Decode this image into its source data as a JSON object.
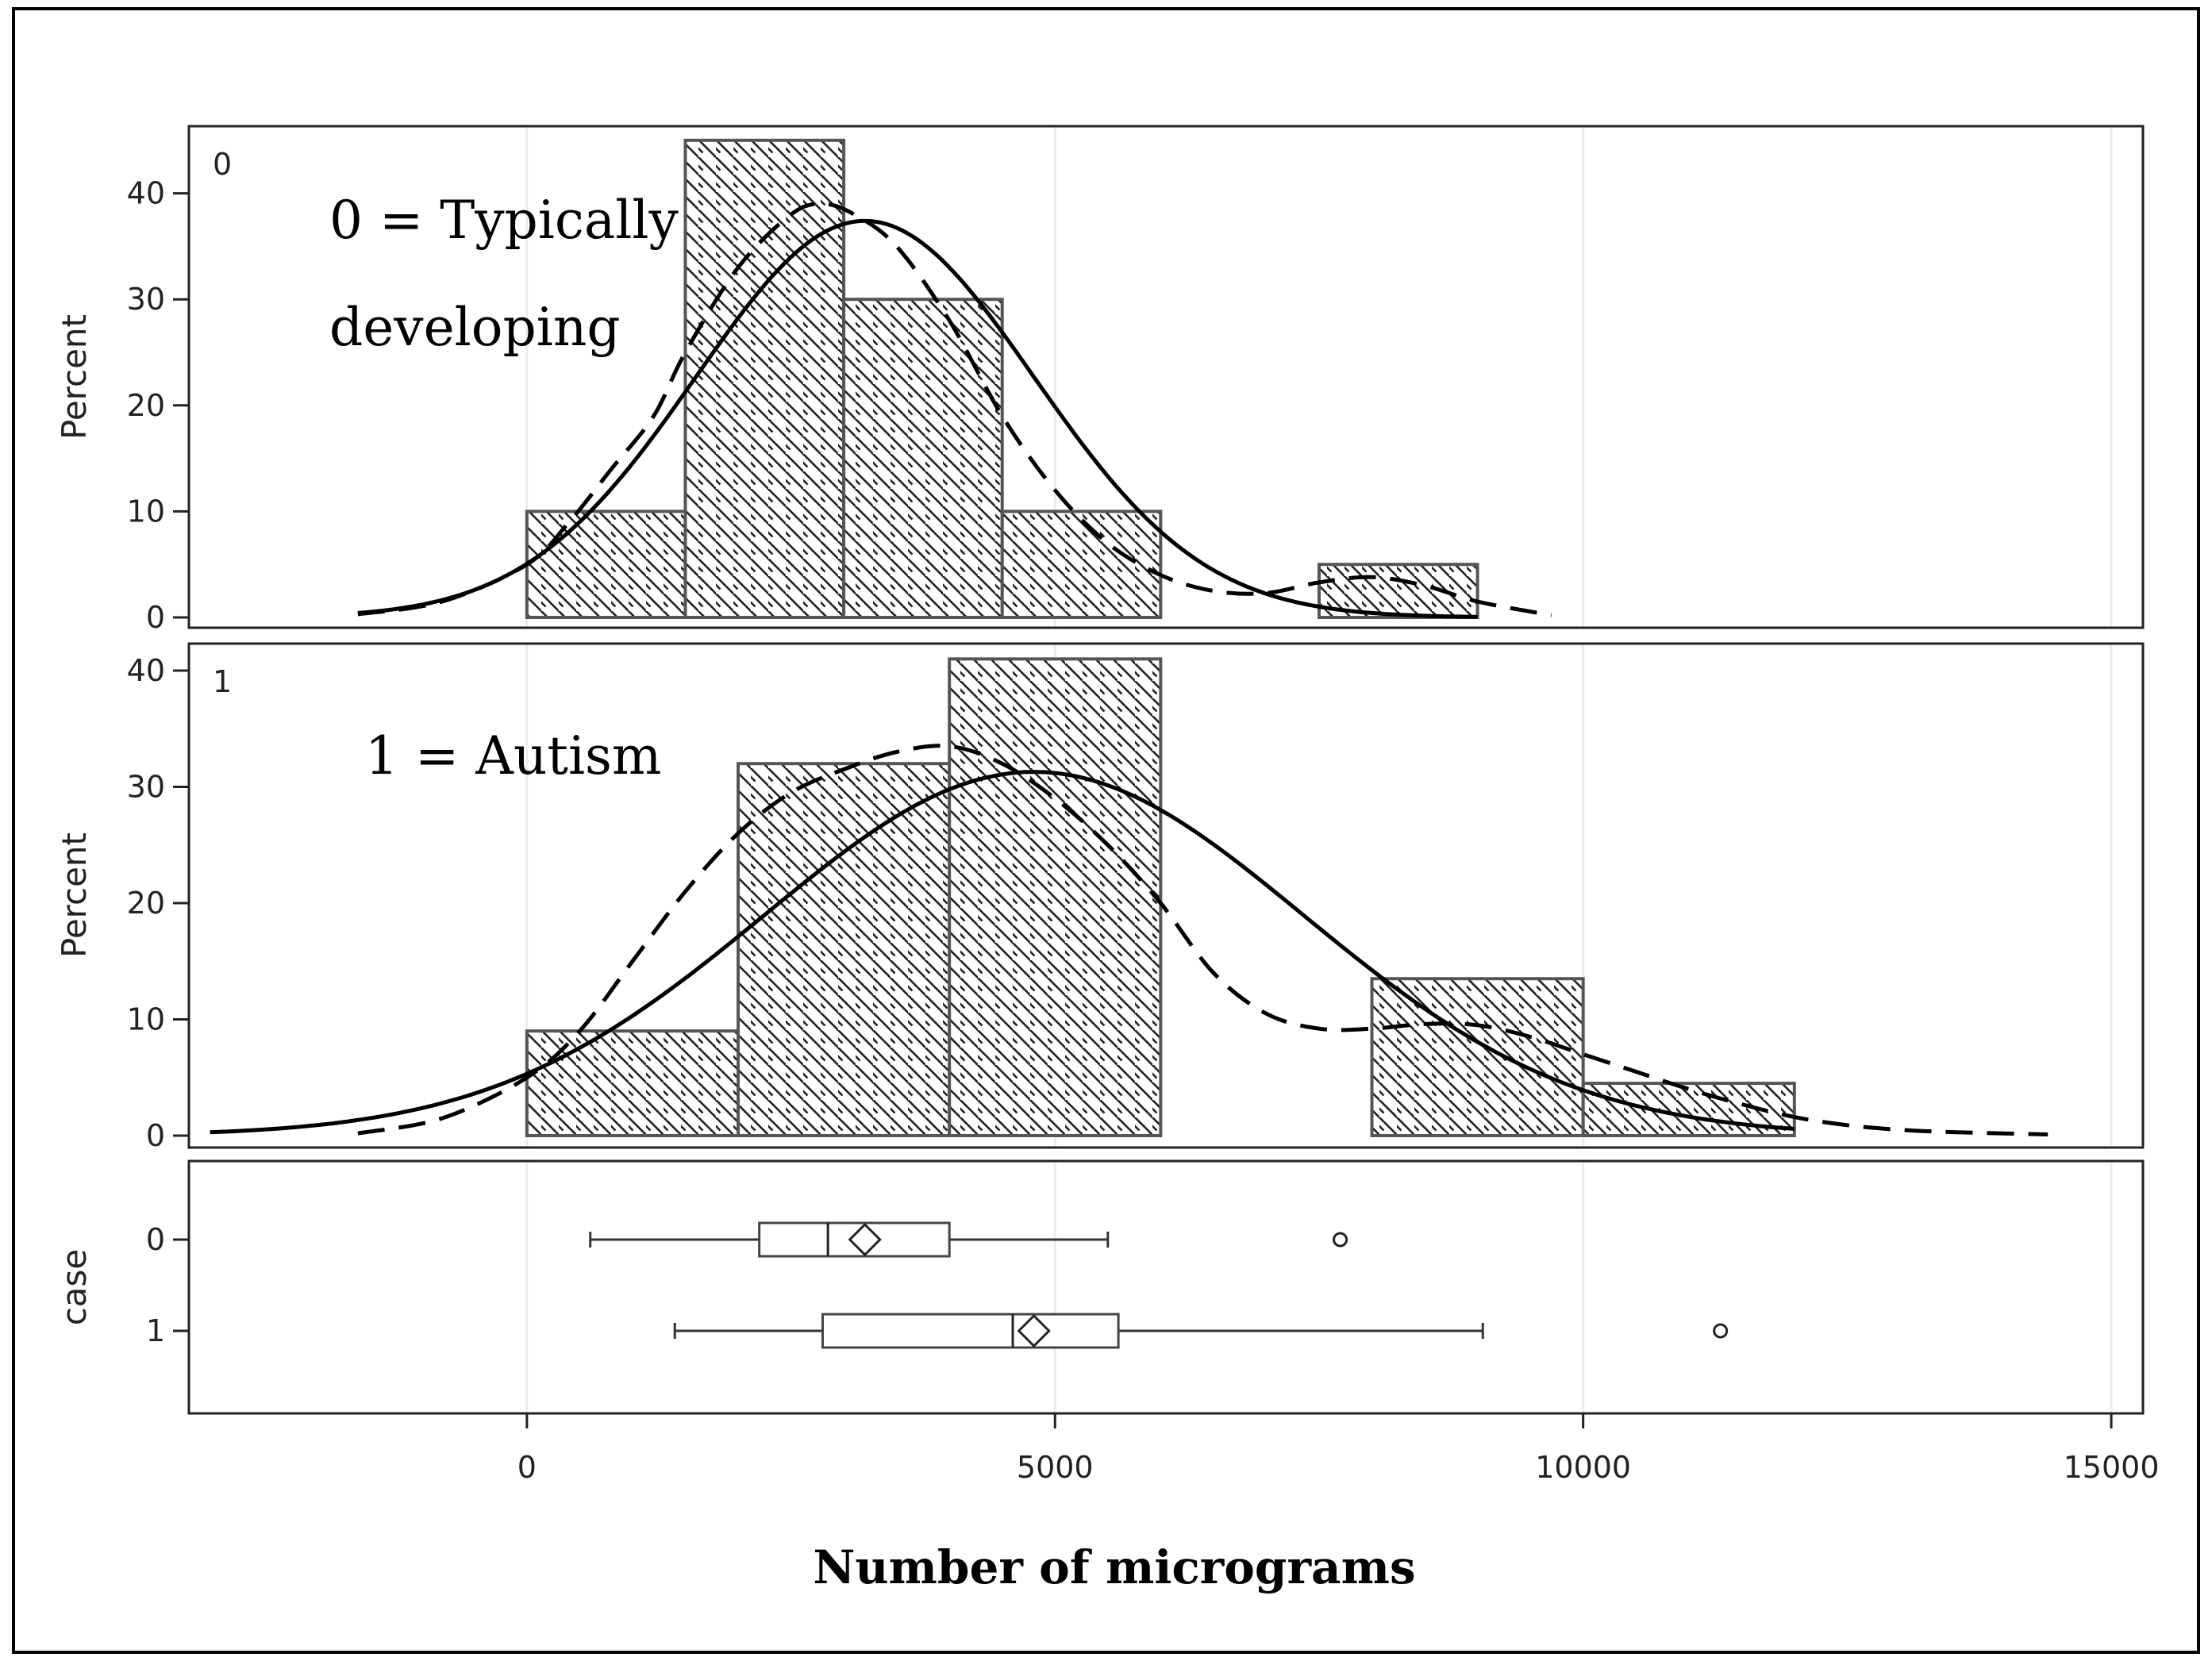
{
  "chart_data": {
    "type": "bar",
    "title": "",
    "xlabel": "Number of micrograms",
    "xlim": [
      -3200,
      15300
    ],
    "x_ticks": [
      "0",
      "5000",
      "10000",
      "15000"
    ],
    "x_tick_values": [
      0,
      5000,
      10000,
      15000
    ],
    "panels": [
      {
        "panel_label": "0",
        "annotation_lines": [
          "0 = Typically",
          "developing"
        ],
        "ylabel": "Percent",
        "ylim": [
          0,
          47
        ],
        "y_ticks": [
          "0",
          "10",
          "20",
          "30",
          "40"
        ],
        "y_tick_values": [
          0,
          10,
          20,
          30,
          40
        ],
        "bins": [
          {
            "x0": 0,
            "x1": 1500,
            "percent": 10
          },
          {
            "x0": 1500,
            "x1": 3000,
            "percent": 45
          },
          {
            "x0": 3000,
            "x1": 4500,
            "percent": 30
          },
          {
            "x0": 4500,
            "x1": 6000,
            "percent": 10
          },
          {
            "x0": 6000,
            "x1": 7500,
            "percent": 0
          },
          {
            "x0": 7500,
            "x1": 9000,
            "percent": 5
          }
        ],
        "normal_curve": {
          "mean": 3200,
          "sd": 1600,
          "area": 1500,
          "x_range": [
            -1600,
            9000
          ]
        },
        "kernel_curve": {
          "x": [
            -1600,
            -800,
            0,
            400,
            800,
            1200,
            1500,
            2000,
            2500,
            2800,
            3100,
            3500,
            4000,
            4500,
            5000,
            5500,
            6000,
            6500,
            7000,
            7500,
            8000,
            8500,
            9000,
            9700
          ],
          "y": [
            0.3,
            1.5,
            5,
            9,
            14,
            19,
            25,
            33,
            38,
            39,
            38,
            35,
            28,
            19,
            12,
            7,
            4,
            2.5,
            2.3,
            3.3,
            3.8,
            3,
            1.5,
            0.2
          ]
        }
      },
      {
        "panel_label": "1",
        "annotation_lines": [
          "1 = Autism"
        ],
        "ylabel": "Percent",
        "ylim": [
          0,
          41
        ],
        "y_ticks": [
          "0",
          "10",
          "20",
          "30",
          "40"
        ],
        "y_tick_values": [
          0,
          10,
          20,
          30,
          40
        ],
        "bins": [
          {
            "x0": 0,
            "x1": 2000,
            "percent": 9
          },
          {
            "x0": 2000,
            "x1": 4000,
            "percent": 32
          },
          {
            "x0": 4000,
            "x1": 6000,
            "percent": 41
          },
          {
            "x0": 6000,
            "x1": 8000,
            "percent": 0
          },
          {
            "x0": 8000,
            "x1": 10000,
            "percent": 13.5
          },
          {
            "x0": 10000,
            "x1": 12000,
            "percent": 4.5
          }
        ],
        "normal_curve": {
          "mean": 4800,
          "sd": 2550,
          "area": 2000,
          "x_range": [
            -3000,
            12000
          ]
        },
        "kernel_curve": {
          "x": [
            -1600,
            -800,
            0,
            500,
            1000,
            1500,
            2000,
            2500,
            3000,
            3500,
            4000,
            4500,
            5000,
            5500,
            6000,
            6500,
            7000,
            7500,
            8000,
            8500,
            9000,
            9500,
            10000,
            10500,
            11000,
            11500,
            12000,
            12500,
            13000,
            13500,
            14400
          ],
          "y": [
            0.2,
            1.5,
            5,
            9,
            15,
            21,
            26,
            29.5,
            31.5,
            33,
            33.5,
            32,
            29,
            25,
            20,
            14,
            10.5,
            9.2,
            9.2,
            9.6,
            9.5,
            8.5,
            7,
            5.5,
            4,
            2.7,
            1.6,
            0.9,
            0.5,
            0.3,
            0.1
          ]
        }
      }
    ],
    "boxplot": {
      "ylabel": "case",
      "categories": [
        "0",
        "1"
      ],
      "series": [
        {
          "name": "0",
          "whisker_low": 600,
          "q1": 2200,
          "median": 2850,
          "mean": 3200,
          "q3": 4000,
          "whisker_high": 5500,
          "outliers": [
            7700
          ]
        },
        {
          "name": "1",
          "whisker_low": 1400,
          "q1": 2800,
          "median": 4600,
          "mean": 4800,
          "q3": 5600,
          "whisker_high": 9050,
          "outliers": [
            11300
          ]
        }
      ]
    }
  }
}
